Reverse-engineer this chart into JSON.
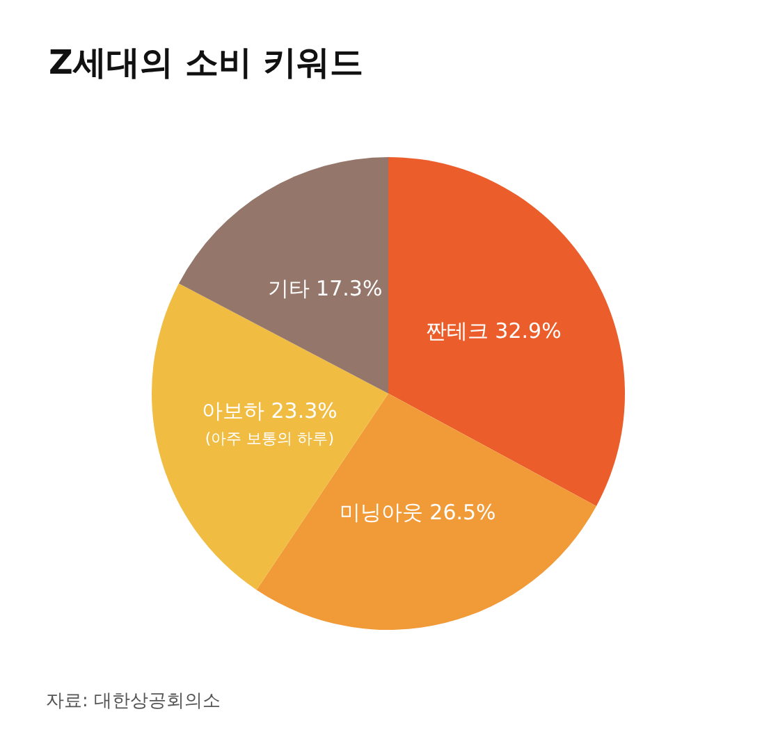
{
  "chart_data": {
    "type": "pie",
    "title": "Z세대의 소비 키워드",
    "categories": [
      "짠테크",
      "미닝아웃",
      "아보하",
      "기타"
    ],
    "values": [
      32.9,
      26.5,
      23.3,
      17.3
    ],
    "colors": [
      "#eb5e2c",
      "#f19a38",
      "#f0bc42",
      "#94766a"
    ],
    "value_labels": [
      "32.9%",
      "26.5%",
      "23.3%",
      "17.3%"
    ],
    "annotations": [
      {
        "text": "(아주 보통의 하루)",
        "x": "아보하"
      },
      "자료: 대한상공회의소"
    ]
  }
}
